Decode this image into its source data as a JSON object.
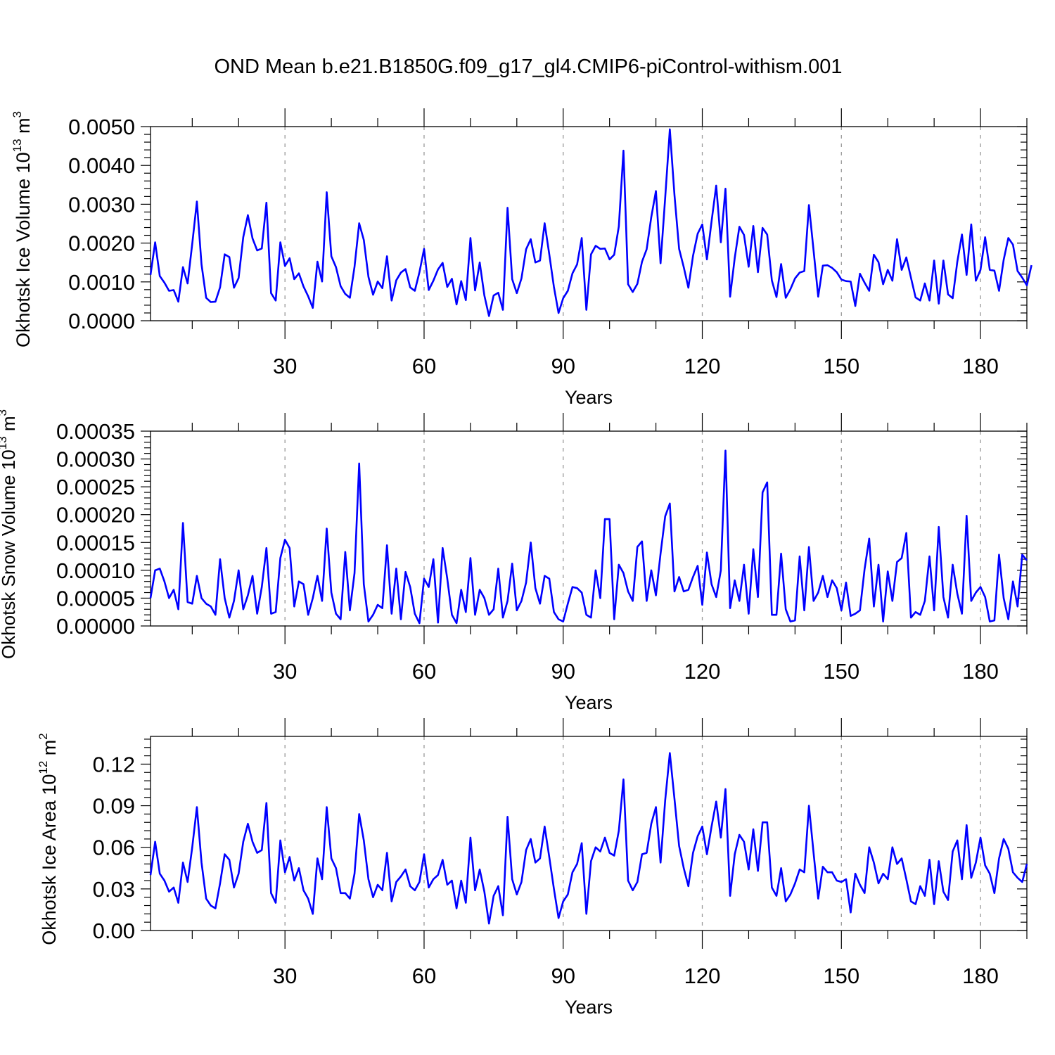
{
  "figure": {
    "title": "OND Mean b.e21.B1850G.f09_g17_gl4.CMIP6-piControl-withism.001",
    "line_color": "#0000ff",
    "grid_color": "#999999"
  },
  "chart_data": [
    {
      "type": "line",
      "title": "",
      "xlabel": "Years",
      "ylabel": {
        "main": "Okhotsk Ice Volume 10",
        "exp": "13",
        "unit": " m",
        "unit_exp": "3"
      },
      "xlim": [
        1,
        190
      ],
      "ylim": [
        0,
        0.005
      ],
      "xticks": [
        30,
        60,
        90,
        120,
        150,
        180
      ],
      "xtick_labels": [
        "30",
        "60",
        "90",
        "120",
        "150",
        "180"
      ],
      "yticks": [
        0,
        0.001,
        0.002,
        0.003,
        0.004,
        0.005
      ],
      "ytick_labels": [
        "0.0000",
        "0.0010",
        "0.0020",
        "0.0030",
        "0.0040",
        "0.0050"
      ],
      "grid": "vertical dashed at major x ticks",
      "series": [
        {
          "x_start": 1,
          "values": [
            0.00118,
            0.00202,
            0.00115,
            0.00098,
            0.00077,
            0.00079,
            0.00049,
            0.00138,
            0.00096,
            0.00198,
            0.00307,
            0.00145,
            0.00059,
            0.00048,
            0.00049,
            0.00086,
            0.00171,
            0.00164,
            0.00085,
            0.0011,
            0.00215,
            0.00272,
            0.00212,
            0.00181,
            0.00186,
            0.00304,
            0.00071,
            0.00052,
            0.00202,
            0.00141,
            0.00161,
            0.00107,
            0.00122,
            0.00088,
            0.00063,
            0.00033,
            0.00152,
            0.00101,
            0.00331,
            0.00166,
            0.00138,
            0.00089,
            0.00069,
            0.00059,
            0.00139,
            0.00251,
            0.00208,
            0.00113,
            0.00067,
            0.00101,
            0.00084,
            0.00166,
            0.00052,
            0.00104,
            0.00124,
            0.00133,
            0.00086,
            0.00077,
            0.00125,
            0.00185,
            0.00079,
            0.00103,
            0.00132,
            0.00149,
            0.00087,
            0.00108,
            0.00042,
            0.00102,
            0.00053,
            0.00213,
            0.00078,
            0.0015,
            0.00065,
            0.00012,
            0.00065,
            0.00072,
            0.00028,
            0.00291,
            0.00107,
            0.00071,
            0.00109,
            0.00184,
            0.0021,
            0.0015,
            0.00155,
            0.00251,
            0.00171,
            0.00087,
            0.0002,
            0.00058,
            0.00077,
            0.00122,
            0.00145,
            0.00213,
            0.00028,
            0.00171,
            0.00193,
            0.00185,
            0.00186,
            0.00158,
            0.0017,
            0.00243,
            0.00438,
            0.00094,
            0.00074,
            0.00095,
            0.00152,
            0.00184,
            0.00267,
            0.00334,
            0.00148,
            0.00317,
            0.00493,
            0.00324,
            0.00185,
            0.00138,
            0.00085,
            0.00167,
            0.00224,
            0.00248,
            0.00158,
            0.00256,
            0.00348,
            0.00202,
            0.0034,
            0.00062,
            0.00162,
            0.00242,
            0.00221,
            0.00139,
            0.00244,
            0.00125,
            0.00239,
            0.00222,
            0.00104,
            0.00061,
            0.00146,
            0.00059,
            0.00081,
            0.00109,
            0.00124,
            0.00128,
            0.00298,
            0.00181,
            0.00062,
            0.00142,
            0.00143,
            0.00136,
            0.00125,
            0.00106,
            0.00102,
            0.00101,
            0.00038,
            0.00121,
            0.00098,
            0.00077,
            0.0017,
            0.00151,
            0.00094,
            0.00131,
            0.00103,
            0.0021,
            0.00131,
            0.00163,
            0.00111,
            0.0006,
            0.00052,
            0.00096,
            0.00052,
            0.00155,
            0.00044,
            0.00155,
            0.00068,
            0.00058,
            0.00152,
            0.00222,
            0.00118,
            0.00248,
            0.00103,
            0.00131,
            0.00215,
            0.00131,
            0.00129,
            0.00077,
            0.00157,
            0.00213,
            0.00196,
            0.00128,
            0.00111,
            0.00091,
            0.00143
          ]
        }
      ]
    },
    {
      "type": "line",
      "title": "",
      "xlabel": "Years",
      "ylabel": {
        "main": "Okhotsk Snow Volume 10",
        "exp": "13",
        "unit": " m",
        "unit_exp": "3"
      },
      "xlim": [
        1,
        190
      ],
      "ylim": [
        0,
        0.00035
      ],
      "xticks": [
        30,
        60,
        90,
        120,
        150,
        180
      ],
      "xtick_labels": [
        "30",
        "60",
        "90",
        "120",
        "150",
        "180"
      ],
      "yticks": [
        0,
        5e-05,
        0.0001,
        0.00015,
        0.0002,
        0.00025,
        0.0003,
        0.00035
      ],
      "ytick_labels": [
        "0.00000",
        "0.00005",
        "0.00010",
        "0.00015",
        "0.00020",
        "0.00025",
        "0.00030",
        "0.00035"
      ],
      "grid": "vertical dashed at major x ticks",
      "series": [
        {
          "x_start": 1,
          "values": [
            5e-05,
            0.0001,
            0.000103,
            8e-05,
            5e-05,
            6.5e-05,
            3e-05,
            0.000185,
            4.3e-05,
            4e-05,
            9e-05,
            5e-05,
            4e-05,
            3.5e-05,
            2e-05,
            0.00012,
            5e-05,
            1.5e-05,
            4.5e-05,
            0.0001,
            3e-05,
            5.5e-05,
            9e-05,
            2.2e-05,
            7e-05,
            0.00014,
            2.2e-05,
            2.5e-05,
            0.000122,
            0.000155,
            0.00014,
            3.5e-05,
            8e-05,
            7.5e-05,
            2e-05,
            5e-05,
            9e-05,
            4.5e-05,
            0.000175,
            6e-05,
            2.2e-05,
            1.2e-05,
            0.000133,
            2.8e-05,
            9.5e-05,
            0.000292,
            7.5e-05,
            8e-06,
            2e-05,
            3.8e-05,
            3.2e-05,
            0.000145,
            2.2e-05,
            0.000103,
            1.2e-05,
            9.7e-05,
            7e-05,
            2.2e-05,
            5e-06,
            8.5e-05,
            7e-05,
            0.00012,
            6e-06,
            0.00014,
            8.5e-05,
            2e-05,
            5e-06,
            6.5e-05,
            2.5e-05,
            0.000122,
            2e-05,
            6.5e-05,
            5e-05,
            2e-05,
            3e-05,
            0.000103,
            1.5e-05,
            4.5e-05,
            0.000112,
            2.8e-05,
            4.5e-05,
            7.8e-05,
            0.00015,
            6.8e-05,
            4e-05,
            9e-05,
            8.5e-05,
            2.5e-05,
            1.2e-05,
            8e-06,
            4e-05,
            7e-05,
            6.8e-05,
            6e-05,
            2e-05,
            1.5e-05,
            0.0001,
            5e-05,
            0.000192,
            0.000192,
            1.2e-05,
            0.00011,
            9.5e-05,
            6.2e-05,
            4.5e-05,
            0.000142,
            0.000152,
            4.5e-05,
            0.0001,
            5.5e-05,
            0.00013,
            0.000197,
            0.00022,
            6.2e-05,
            8.8e-05,
            6.2e-05,
            6.5e-05,
            8.8e-05,
            0.000108,
            3.8e-05,
            0.000132,
            7.5e-05,
            5.2e-05,
            0.0001,
            0.000315,
            3.2e-05,
            8.2e-05,
            4.5e-05,
            0.00011,
            2.2e-05,
            0.000138,
            5.2e-05,
            0.00024,
            0.000258,
            2e-05,
            2e-05,
            0.00013,
            3e-05,
            8e-06,
            1e-05,
            0.000125,
            2.8e-05,
            0.000142,
            4.5e-05,
            6e-05,
            9e-05,
            5.2e-05,
            8.2e-05,
            6.8e-05,
            2.8e-05,
            7.8e-05,
            1.8e-05,
            2.2e-05,
            2.8e-05,
            0.000102,
            0.000157,
            3.5e-05,
            0.00011,
            8e-06,
            9.8e-05,
            4.5e-05,
            0.000115,
            0.000122,
            0.000167,
            1.5e-05,
            2.5e-05,
            2e-05,
            4.5e-05,
            0.000125,
            2.8e-05,
            0.000178,
            5.2e-05,
            1.5e-05,
            0.00011,
            5.8e-05,
            2.2e-05,
            0.000198,
            4.5e-05,
            6e-05,
            7e-05,
            5.2e-05,
            8e-06,
            1e-05,
            0.000128,
            5e-05,
            1.2e-05,
            8e-05,
            3.5e-05,
            0.000128,
            0.000118
          ]
        }
      ]
    },
    {
      "type": "line",
      "title": "",
      "xlabel": "Years",
      "ylabel": {
        "main": "Okhotsk Ice Area 10",
        "exp": "12",
        "unit": " m",
        "unit_exp": "2"
      },
      "xlim": [
        1,
        190
      ],
      "ylim": [
        0,
        0.14
      ],
      "xticks": [
        30,
        60,
        90,
        120,
        150,
        180
      ],
      "xtick_labels": [
        "30",
        "60",
        "90",
        "120",
        "150",
        "180"
      ],
      "yticks": [
        0,
        0.03,
        0.06,
        0.09,
        0.12
      ],
      "ytick_labels": [
        "0.00",
        "0.03",
        "0.06",
        "0.09",
        "0.12"
      ],
      "grid": "vertical dashed at major x ticks",
      "series": [
        {
          "x_start": 1,
          "values": [
            0.04,
            0.064,
            0.041,
            0.036,
            0.028,
            0.031,
            0.02,
            0.049,
            0.035,
            0.06,
            0.089,
            0.049,
            0.023,
            0.018,
            0.016,
            0.034,
            0.055,
            0.051,
            0.031,
            0.041,
            0.064,
            0.077,
            0.064,
            0.056,
            0.058,
            0.092,
            0.027,
            0.02,
            0.065,
            0.042,
            0.053,
            0.036,
            0.045,
            0.029,
            0.023,
            0.012,
            0.052,
            0.037,
            0.089,
            0.052,
            0.045,
            0.027,
            0.027,
            0.023,
            0.041,
            0.084,
            0.065,
            0.037,
            0.024,
            0.033,
            0.029,
            0.056,
            0.021,
            0.035,
            0.039,
            0.044,
            0.032,
            0.029,
            0.035,
            0.055,
            0.031,
            0.037,
            0.04,
            0.051,
            0.033,
            0.036,
            0.016,
            0.036,
            0.02,
            0.067,
            0.029,
            0.044,
            0.028,
            0.005,
            0.025,
            0.032,
            0.011,
            0.082,
            0.037,
            0.026,
            0.035,
            0.058,
            0.066,
            0.049,
            0.052,
            0.075,
            0.053,
            0.03,
            0.009,
            0.021,
            0.026,
            0.042,
            0.048,
            0.063,
            0.012,
            0.05,
            0.06,
            0.057,
            0.067,
            0.056,
            0.054,
            0.072,
            0.109,
            0.036,
            0.029,
            0.035,
            0.055,
            0.056,
            0.077,
            0.089,
            0.049,
            0.094,
            0.128,
            0.095,
            0.061,
            0.045,
            0.032,
            0.056,
            0.068,
            0.075,
            0.055,
            0.075,
            0.093,
            0.067,
            0.102,
            0.025,
            0.055,
            0.069,
            0.064,
            0.044,
            0.073,
            0.043,
            0.078,
            0.078,
            0.031,
            0.025,
            0.045,
            0.021,
            0.026,
            0.034,
            0.044,
            0.042,
            0.09,
            0.056,
            0.023,
            0.046,
            0.042,
            0.042,
            0.036,
            0.035,
            0.037,
            0.013,
            0.041,
            0.033,
            0.027,
            0.06,
            0.049,
            0.034,
            0.041,
            0.037,
            0.06,
            0.048,
            0.052,
            0.037,
            0.021,
            0.019,
            0.032,
            0.025,
            0.051,
            0.019,
            0.05,
            0.028,
            0.022,
            0.057,
            0.065,
            0.037,
            0.076,
            0.038,
            0.049,
            0.067,
            0.047,
            0.041,
            0.027,
            0.052,
            0.066,
            0.059,
            0.042,
            0.038,
            0.035,
            0.048
          ]
        }
      ]
    }
  ]
}
